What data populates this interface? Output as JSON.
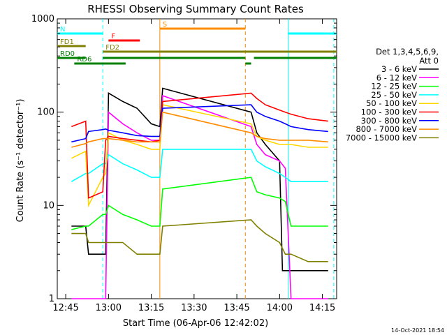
{
  "chart_data": {
    "type": "line",
    "title": "RHESSI Observing Summary Count Rates",
    "xlabel": "Start Time (06-Apr-06 12:42:02)",
    "ylabel": "Count Rate (s⁻¹ detector⁻¹)",
    "y_scale": "log",
    "ylim": [
      1,
      1000
    ],
    "xlim": [
      "12:42:02",
      "14:20:00"
    ],
    "x_ticks": [
      "12:45",
      "13:00",
      "13:15",
      "13:30",
      "13:45",
      "14:00",
      "14:15"
    ],
    "y_ticks": [
      "1",
      "10",
      "100",
      "1000"
    ],
    "legend_header": [
      "Det 1,3,4,5,6,9,",
      "Att 0"
    ],
    "legend_position": "right",
    "series": [
      {
        "name": "3 - 6 keV",
        "color": "#000000",
        "x": [
          "12:47",
          "12:52",
          "12:53",
          "12:58",
          "12:59",
          "13:00",
          "13:05",
          "13:10",
          "13:15",
          "13:18",
          "13:19",
          "13:50",
          "13:52",
          "13:55",
          "14:00",
          "14:01",
          "14:04",
          "14:10",
          "14:17"
        ],
        "y": [
          6,
          6,
          3,
          3,
          3,
          160,
          130,
          110,
          75,
          70,
          180,
          100,
          60,
          45,
          30,
          2,
          2,
          2,
          2
        ]
      },
      {
        "name": "6 - 12 keV",
        "color": "#ff00ff",
        "x": [
          "12:47",
          "12:52",
          "12:53",
          "12:58",
          "12:59",
          "13:00",
          "13:05",
          "13:10",
          "13:15",
          "13:18",
          "13:19",
          "13:50",
          "13:52",
          "13:55",
          "14:00",
          "14:02",
          "14:04",
          "14:17"
        ],
        "y": [
          1,
          1,
          1,
          1,
          1,
          100,
          75,
          60,
          50,
          50,
          150,
          70,
          45,
          35,
          30,
          25,
          1,
          1
        ]
      },
      {
        "name": "12 - 25 keV",
        "color": "#00ff00",
        "x": [
          "12:47",
          "12:52",
          "12:53",
          "12:58",
          "12:59",
          "13:00",
          "13:05",
          "13:10",
          "13:15",
          "13:18",
          "13:19",
          "13:50",
          "13:52",
          "13:55",
          "14:00",
          "14:02",
          "14:04",
          "14:10",
          "14:17"
        ],
        "y": [
          5.5,
          6,
          6,
          8,
          8,
          10,
          8,
          7,
          6,
          6,
          15,
          20,
          14,
          13,
          12,
          11,
          6,
          6,
          6
        ]
      },
      {
        "name": "25 - 50 keV",
        "color": "#00ffff",
        "x": [
          "12:47",
          "12:52",
          "12:53",
          "12:58",
          "12:59",
          "13:00",
          "13:05",
          "13:10",
          "13:15",
          "13:18",
          "13:19",
          "13:50",
          "13:52",
          "13:55",
          "14:00",
          "14:02",
          "14:04",
          "14:10",
          "14:17"
        ],
        "y": [
          18,
          22,
          22,
          28,
          28,
          35,
          28,
          24,
          20,
          20,
          40,
          40,
          30,
          26,
          22,
          20,
          18,
          18,
          18
        ]
      },
      {
        "name": "50 - 100 keV",
        "color": "#ffd700",
        "x": [
          "12:47",
          "12:52",
          "12:53",
          "12:58",
          "12:59",
          "13:00",
          "13:05",
          "13:10",
          "13:15",
          "13:18",
          "13:19",
          "13:50",
          "13:52",
          "13:55",
          "14:00",
          "14:02",
          "14:04",
          "14:10",
          "14:17"
        ],
        "y": [
          32,
          38,
          10,
          20,
          22,
          60,
          50,
          45,
          40,
          40,
          120,
          75,
          55,
          50,
          45,
          45,
          45,
          42,
          42
        ]
      },
      {
        "name": "100 - 300 keV",
        "color": "#ff0000",
        "x": [
          "12:47",
          "12:52",
          "12:53",
          "12:58",
          "12:59",
          "13:00",
          "13:05",
          "13:10",
          "13:15",
          "13:18",
          "13:19",
          "13:50",
          "13:52",
          "13:55",
          "14:00",
          "14:02",
          "14:04",
          "14:10",
          "14:17"
        ],
        "y": [
          70,
          80,
          12,
          14,
          50,
          55,
          52,
          50,
          48,
          50,
          130,
          160,
          140,
          120,
          105,
          100,
          95,
          85,
          80
        ]
      },
      {
        "name": "300 - 800 keV",
        "color": "#0000ff",
        "x": [
          "12:47",
          "12:52",
          "12:53",
          "12:58",
          "12:59",
          "13:00",
          "13:05",
          "13:10",
          "13:15",
          "13:18",
          "13:19",
          "13:50",
          "13:52",
          "13:55",
          "14:00",
          "14:02",
          "14:04",
          "14:10",
          "14:17"
        ],
        "y": [
          48,
          52,
          62,
          65,
          66,
          64,
          60,
          56,
          55,
          55,
          110,
          120,
          100,
          90,
          80,
          75,
          70,
          65,
          62
        ]
      },
      {
        "name": "800 - 7000 keV",
        "color": "#ff8c00",
        "x": [
          "12:47",
          "12:52",
          "12:53",
          "12:58",
          "12:59",
          "13:00",
          "13:05",
          "13:10",
          "13:15",
          "13:18",
          "13:19",
          "13:50",
          "13:52",
          "13:55",
          "14:00",
          "14:02",
          "14:04",
          "14:10",
          "14:17"
        ],
        "y": [
          42,
          46,
          48,
          52,
          52,
          52,
          50,
          48,
          48,
          48,
          100,
          60,
          55,
          52,
          50,
          50,
          50,
          50,
          48
        ]
      },
      {
        "name": "7000 - 15000 keV",
        "color": "#808000",
        "x": [
          "12:47",
          "12:52",
          "12:53",
          "12:58",
          "12:59",
          "13:00",
          "13:05",
          "13:10",
          "13:15",
          "13:18",
          "13:19",
          "13:50",
          "13:52",
          "13:55",
          "14:00",
          "14:02",
          "14:04",
          "14:10",
          "14:17"
        ],
        "y": [
          5,
          5,
          4,
          4,
          4,
          4,
          4,
          3,
          3,
          3,
          6,
          7,
          6,
          5,
          4,
          3,
          3,
          2.5,
          2.5
        ]
      }
    ],
    "flag_bars": [
      {
        "label": "N",
        "color": "#00ffff",
        "segments": [
          [
            "12:42:02",
            "12:58:00"
          ],
          [
            "14:03:00",
            "14:20:00"
          ]
        ]
      },
      {
        "label": "F",
        "color": "#ff0000",
        "segments": [
          [
            "13:00:00",
            "13:11:00"
          ]
        ]
      },
      {
        "label": "S",
        "color": "#ff8c00",
        "segments": [
          [
            "13:18:00",
            "13:48:00"
          ]
        ]
      },
      {
        "label": "FD1",
        "color": "#808000",
        "segments": [
          [
            "12:42:02",
            "12:52:00"
          ]
        ]
      },
      {
        "label": "FD2",
        "color": "#808000",
        "segments": [
          [
            "12:58:00",
            "14:20:00"
          ]
        ]
      },
      {
        "label": "RD0",
        "color": "#008000",
        "segments": [
          [
            "12:42:02",
            "12:52:00"
          ],
          [
            "12:58:00",
            "13:48:00"
          ],
          [
            "13:51:00",
            "14:20:00"
          ]
        ]
      },
      {
        "label": "RD6",
        "color": "#008000",
        "segments": [
          [
            "12:48:00",
            "13:06:00"
          ],
          [
            "13:48:00",
            "13:50:00"
          ]
        ]
      }
    ],
    "vertical_markers": [
      {
        "x": "12:58:00",
        "color": "#00ffff",
        "style": "dashed"
      },
      {
        "x": "13:18:00",
        "color": "#ff8c00",
        "style": "solid"
      },
      {
        "x": "13:48:00",
        "color": "#ff8c00",
        "style": "dashed"
      },
      {
        "x": "14:03:00",
        "color": "#00ffff",
        "style": "solid"
      },
      {
        "x": "14:19:00",
        "color": "#00ffff",
        "style": "dashed"
      }
    ],
    "grid": false,
    "footer_date": "14-Oct-2021 18:54"
  }
}
